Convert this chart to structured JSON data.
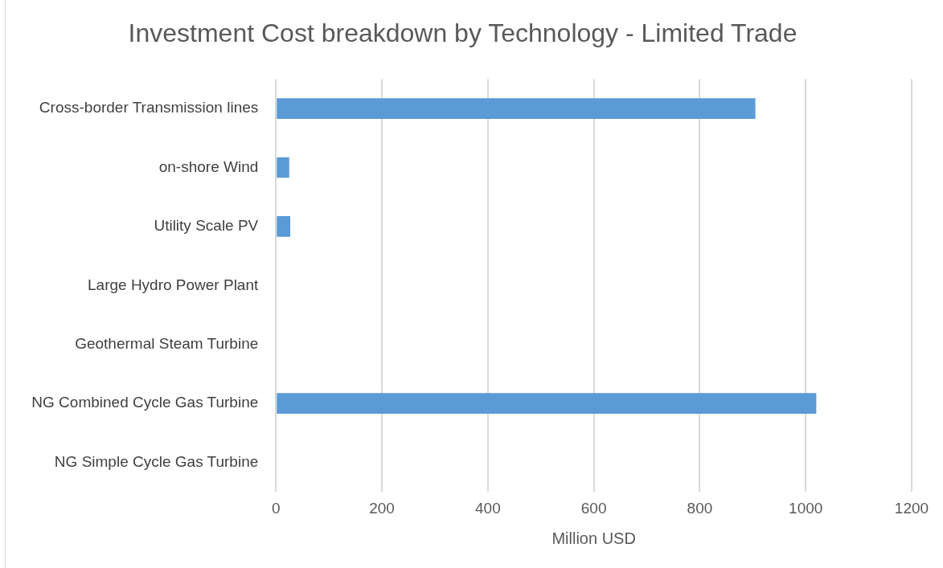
{
  "chart_data": {
    "type": "bar",
    "orientation": "horizontal",
    "title": "Investment Cost breakdown by Technology - Limited Trade",
    "xlabel": "Million USD",
    "categories": [
      "Cross-border Transmission lines",
      "on-shore Wind",
      "Utility Scale PV",
      "Large Hydro Power Plant",
      "Geothermal Steam Turbine",
      "NG Combined Cycle Gas Turbine",
      "NG Simple Cycle Gas Turbine"
    ],
    "values": [
      905,
      25,
      27,
      null,
      null,
      1020,
      null
    ],
    "color": "#5b9bd5",
    "xlim": [
      0,
      1200
    ],
    "xticks": [
      0,
      200,
      400,
      600,
      800,
      1000,
      1200
    ],
    "grid": "x",
    "legend": false
  }
}
